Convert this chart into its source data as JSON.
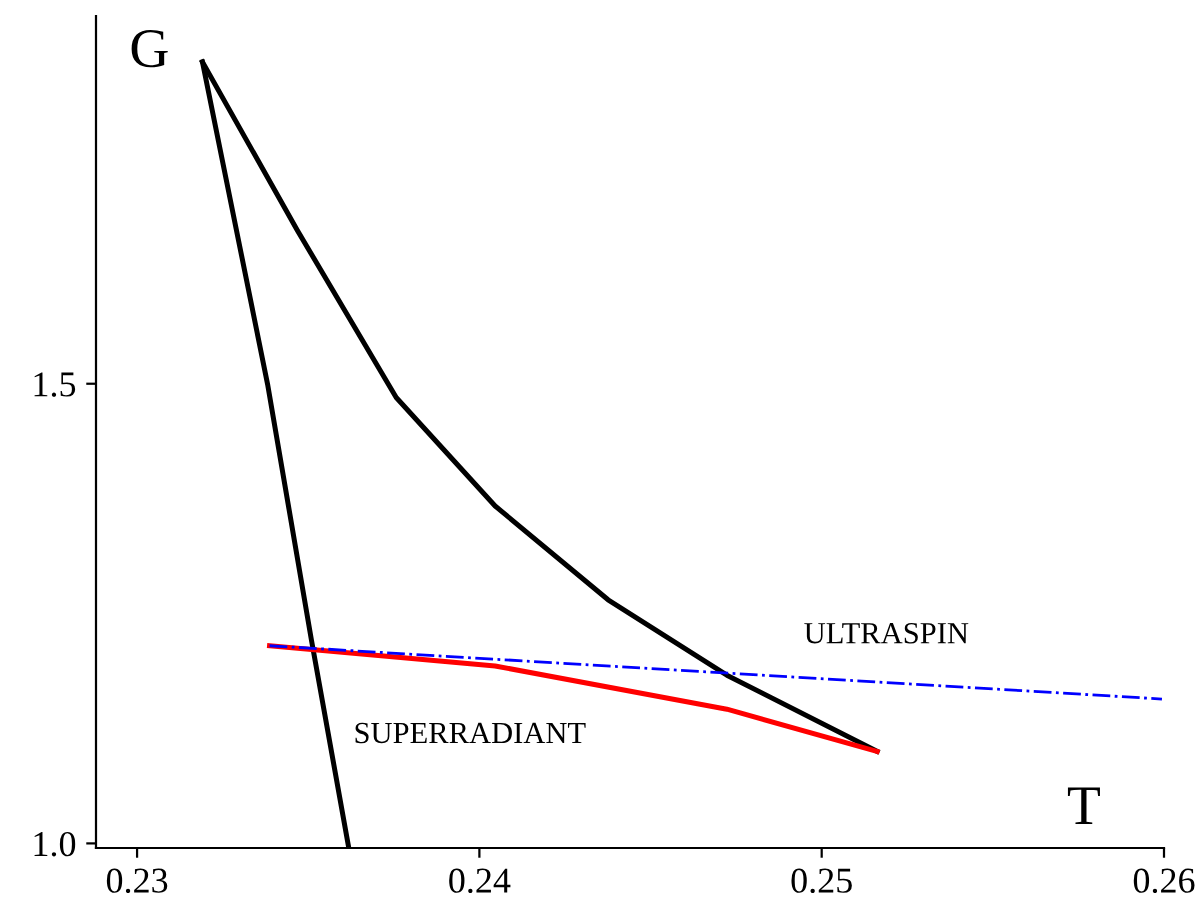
{
  "chart_data": {
    "type": "line",
    "xlabel": "T",
    "ylabel": "G",
    "xlim": [
      0.2288,
      0.26
    ],
    "ylim": [
      0.995,
      1.9
    ],
    "xticks": [
      0.23,
      0.24,
      0.25,
      0.26
    ],
    "yticks": [
      {
        "value": 1.0,
        "label": "1.0"
      },
      {
        "value": 1.5,
        "label": "1.5"
      }
    ],
    "grid": false,
    "marker": "none",
    "annotations": [
      "ULTRASPIN",
      "SUPERRADIANT"
    ],
    "series": [
      {
        "color": "#000000",
        "x": [
          0.23191,
          0.23382,
          0.23509,
          0.23618
        ],
        "values": [
          1.85,
          1.498,
          1.222,
          0.996
        ]
      },
      {
        "color": "#000000",
        "x": [
          0.23191,
          0.23468,
          0.23757,
          0.24046,
          0.24376,
          0.24723,
          0.25162
        ],
        "values": [
          1.85,
          1.667,
          1.485,
          1.367,
          1.265,
          1.183,
          1.1
        ]
      },
      {
        "color": "#ff0000",
        "x": [
          0.23387,
          0.24046,
          0.24723,
          0.25162
        ],
        "values": [
          1.215,
          1.193,
          1.146,
          1.1
        ]
      },
      {
        "color": "#0000ff",
        "line_style": "dashdot",
        "x": [
          0.23387,
          0.25994
        ],
        "values": [
          1.215,
          1.157
        ]
      }
    ]
  }
}
